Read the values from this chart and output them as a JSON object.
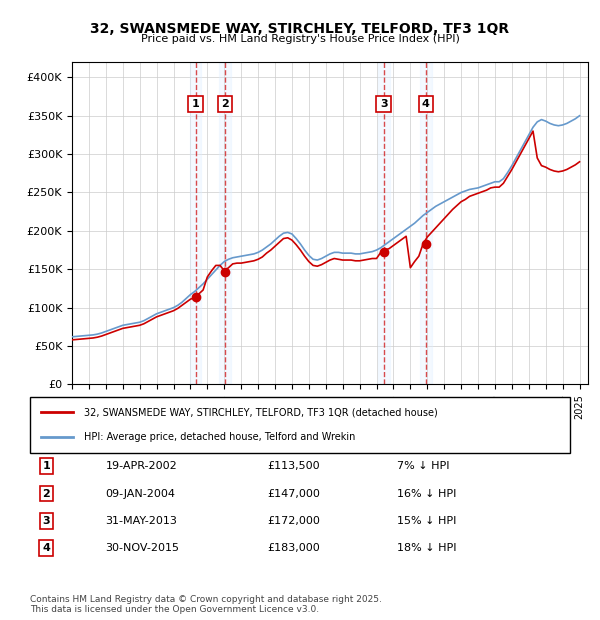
{
  "title": "32, SWANSMEDE WAY, STIRCHLEY, TELFORD, TF3 1QR",
  "subtitle": "Price paid vs. HM Land Registry's House Price Index (HPI)",
  "ylabel_ticks": [
    "£0",
    "£50K",
    "£100K",
    "£150K",
    "£200K",
    "£250K",
    "£300K",
    "£350K",
    "£400K"
  ],
  "ylim": [
    0,
    420000
  ],
  "xlim_start": 1995.0,
  "xlim_end": 2025.5,
  "transactions": [
    {
      "num": 1,
      "date": "19-APR-2002",
      "date_val": 2002.3,
      "price": 113500,
      "pct": "7%"
    },
    {
      "num": 2,
      "date": "09-JAN-2004",
      "date_val": 2004.05,
      "price": 147000,
      "pct": "16%"
    },
    {
      "num": 3,
      "date": "31-MAY-2013",
      "date_val": 2013.42,
      "price": 172000,
      "pct": "15%"
    },
    {
      "num": 4,
      "date": "30-NOV-2015",
      "date_val": 2015.92,
      "price": 183000,
      "pct": "18%"
    }
  ],
  "legend_entries": [
    "32, SWANSMEDE WAY, STIRCHLEY, TELFORD, TF3 1QR (detached house)",
    "HPI: Average price, detached house, Telford and Wrekin"
  ],
  "footer1": "Contains HM Land Registry data © Crown copyright and database right 2025.",
  "footer2": "This data is licensed under the Open Government Licence v3.0.",
  "hpi_color": "#6699cc",
  "price_color": "#cc0000",
  "shade_color": "#ddeeff",
  "background_color": "#ffffff",
  "grid_color": "#cccccc",
  "hpi_data": {
    "years": [
      1995.0,
      1995.25,
      1995.5,
      1995.75,
      1996.0,
      1996.25,
      1996.5,
      1996.75,
      1997.0,
      1997.25,
      1997.5,
      1997.75,
      1998.0,
      1998.25,
      1998.5,
      1998.75,
      1999.0,
      1999.25,
      1999.5,
      1999.75,
      2000.0,
      2000.25,
      2000.5,
      2000.75,
      2001.0,
      2001.25,
      2001.5,
      2001.75,
      2002.0,
      2002.25,
      2002.5,
      2002.75,
      2003.0,
      2003.25,
      2003.5,
      2003.75,
      2004.0,
      2004.25,
      2004.5,
      2004.75,
      2005.0,
      2005.25,
      2005.5,
      2005.75,
      2006.0,
      2006.25,
      2006.5,
      2006.75,
      2007.0,
      2007.25,
      2007.5,
      2007.75,
      2008.0,
      2008.25,
      2008.5,
      2008.75,
      2009.0,
      2009.25,
      2009.5,
      2009.75,
      2010.0,
      2010.25,
      2010.5,
      2010.75,
      2011.0,
      2011.25,
      2011.5,
      2011.75,
      2012.0,
      2012.25,
      2012.5,
      2012.75,
      2013.0,
      2013.25,
      2013.5,
      2013.75,
      2014.0,
      2014.25,
      2014.5,
      2014.75,
      2015.0,
      2015.25,
      2015.5,
      2015.75,
      2016.0,
      2016.25,
      2016.5,
      2016.75,
      2017.0,
      2017.25,
      2017.5,
      2017.75,
      2018.0,
      2018.25,
      2018.5,
      2018.75,
      2019.0,
      2019.25,
      2019.5,
      2019.75,
      2020.0,
      2020.25,
      2020.5,
      2020.75,
      2021.0,
      2021.25,
      2021.5,
      2021.75,
      2022.0,
      2022.25,
      2022.5,
      2022.75,
      2023.0,
      2023.25,
      2023.5,
      2023.75,
      2024.0,
      2024.25,
      2024.5,
      2024.75,
      2025.0
    ],
    "values": [
      62000,
      62500,
      63000,
      63500,
      64000,
      64500,
      65500,
      67000,
      69000,
      71000,
      73000,
      75000,
      77000,
      78000,
      79000,
      80000,
      81000,
      83000,
      86000,
      89000,
      92000,
      94000,
      96000,
      98000,
      100000,
      103000,
      107000,
      112000,
      117000,
      121000,
      126000,
      131000,
      137000,
      143000,
      149000,
      155000,
      160000,
      163000,
      165000,
      166000,
      167000,
      168000,
      169000,
      170000,
      172000,
      175000,
      179000,
      183000,
      188000,
      193000,
      197000,
      198000,
      196000,
      190000,
      183000,
      175000,
      168000,
      163000,
      162000,
      164000,
      167000,
      170000,
      172000,
      172000,
      171000,
      171000,
      171000,
      170000,
      170000,
      171000,
      172000,
      173000,
      175000,
      178000,
      182000,
      186000,
      190000,
      194000,
      198000,
      202000,
      206000,
      210000,
      215000,
      220000,
      224000,
      228000,
      232000,
      235000,
      238000,
      241000,
      244000,
      247000,
      250000,
      252000,
      254000,
      255000,
      256000,
      258000,
      260000,
      262000,
      264000,
      264000,
      268000,
      276000,
      285000,
      295000,
      305000,
      315000,
      325000,
      335000,
      342000,
      345000,
      343000,
      340000,
      338000,
      337000,
      338000,
      340000,
      343000,
      346000,
      350000
    ]
  },
  "price_data": {
    "years": [
      1995.0,
      1995.25,
      1995.5,
      1995.75,
      1996.0,
      1996.25,
      1996.5,
      1996.75,
      1997.0,
      1997.25,
      1997.5,
      1997.75,
      1998.0,
      1998.25,
      1998.5,
      1998.75,
      1999.0,
      1999.25,
      1999.5,
      1999.75,
      2000.0,
      2000.25,
      2000.5,
      2000.75,
      2001.0,
      2001.25,
      2001.5,
      2001.75,
      2002.0,
      2002.25,
      2002.5,
      2002.75,
      2003.0,
      2003.25,
      2003.5,
      2003.75,
      2004.0,
      2004.25,
      2004.5,
      2004.75,
      2005.0,
      2005.25,
      2005.5,
      2005.75,
      2006.0,
      2006.25,
      2006.5,
      2006.75,
      2007.0,
      2007.25,
      2007.5,
      2007.75,
      2008.0,
      2008.25,
      2008.5,
      2008.75,
      2009.0,
      2009.25,
      2009.5,
      2009.75,
      2010.0,
      2010.25,
      2010.5,
      2010.75,
      2011.0,
      2011.25,
      2011.5,
      2011.75,
      2012.0,
      2012.25,
      2012.5,
      2012.75,
      2013.0,
      2013.25,
      2013.5,
      2013.75,
      2014.0,
      2014.25,
      2014.5,
      2014.75,
      2015.0,
      2015.25,
      2015.5,
      2015.75,
      2016.0,
      2016.25,
      2016.5,
      2016.75,
      2017.0,
      2017.25,
      2017.5,
      2017.75,
      2018.0,
      2018.25,
      2018.5,
      2018.75,
      2019.0,
      2019.25,
      2019.5,
      2019.75,
      2020.0,
      2020.25,
      2020.5,
      2020.75,
      2021.0,
      2021.25,
      2021.5,
      2021.75,
      2022.0,
      2022.25,
      2022.5,
      2022.75,
      2023.0,
      2023.25,
      2023.5,
      2023.75,
      2024.0,
      2024.25,
      2024.5,
      2024.75,
      2025.0
    ],
    "values": [
      58000,
      58500,
      59000,
      59500,
      60000,
      60500,
      61500,
      63000,
      65000,
      67000,
      69000,
      71000,
      73000,
      74000,
      75000,
      76000,
      77000,
      79000,
      82000,
      85000,
      88000,
      90000,
      92000,
      94000,
      96000,
      99000,
      103000,
      107000,
      111000,
      113000,
      118000,
      123000,
      140000,
      148000,
      155000,
      155000,
      148000,
      152000,
      157000,
      158000,
      158000,
      159000,
      160000,
      161000,
      163000,
      166000,
      171000,
      175000,
      180000,
      185000,
      190000,
      191000,
      188000,
      182000,
      175000,
      167000,
      160000,
      155000,
      154000,
      156000,
      159000,
      162000,
      164000,
      163000,
      162000,
      162000,
      162000,
      161000,
      161000,
      162000,
      163000,
      164000,
      164000,
      172000,
      175000,
      177000,
      181000,
      185000,
      189000,
      193000,
      152000,
      160000,
      167000,
      183000,
      192000,
      198000,
      204000,
      210000,
      216000,
      222000,
      228000,
      233000,
      238000,
      241000,
      245000,
      247000,
      249000,
      251000,
      253000,
      256000,
      257000,
      257000,
      262000,
      271000,
      280000,
      290000,
      300000,
      310000,
      320000,
      330000,
      295000,
      285000,
      283000,
      280000,
      278000,
      277000,
      278000,
      280000,
      283000,
      286000,
      290000
    ]
  }
}
